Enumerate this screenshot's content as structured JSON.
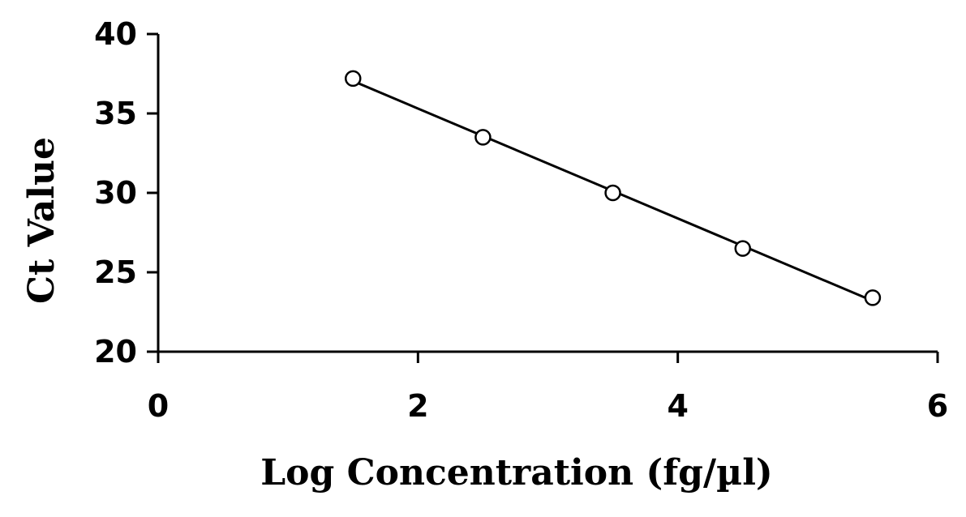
{
  "chart_data": {
    "type": "scatter",
    "title": "",
    "xlabel": "Log Concentration (fg/µl)",
    "ylabel": "Ct Value",
    "xlim": [
      0,
      6
    ],
    "ylim": [
      20,
      40
    ],
    "xticks": [
      "0",
      "2",
      "4",
      "6"
    ],
    "yticks": [
      "20",
      "25",
      "30",
      "35",
      "40"
    ],
    "grid": false,
    "legend": "none",
    "marker": "open-circle",
    "trendline": "linear",
    "series": [
      {
        "points": [
          {
            "x": 1.5,
            "y": 37.2
          },
          {
            "x": 2.5,
            "y": 33.5
          },
          {
            "x": 3.5,
            "y": 30.0
          },
          {
            "x": 4.5,
            "y": 26.5
          },
          {
            "x": 5.5,
            "y": 23.4
          }
        ]
      }
    ],
    "colors": {
      "line": "#000000",
      "marker": "#000000"
    }
  }
}
